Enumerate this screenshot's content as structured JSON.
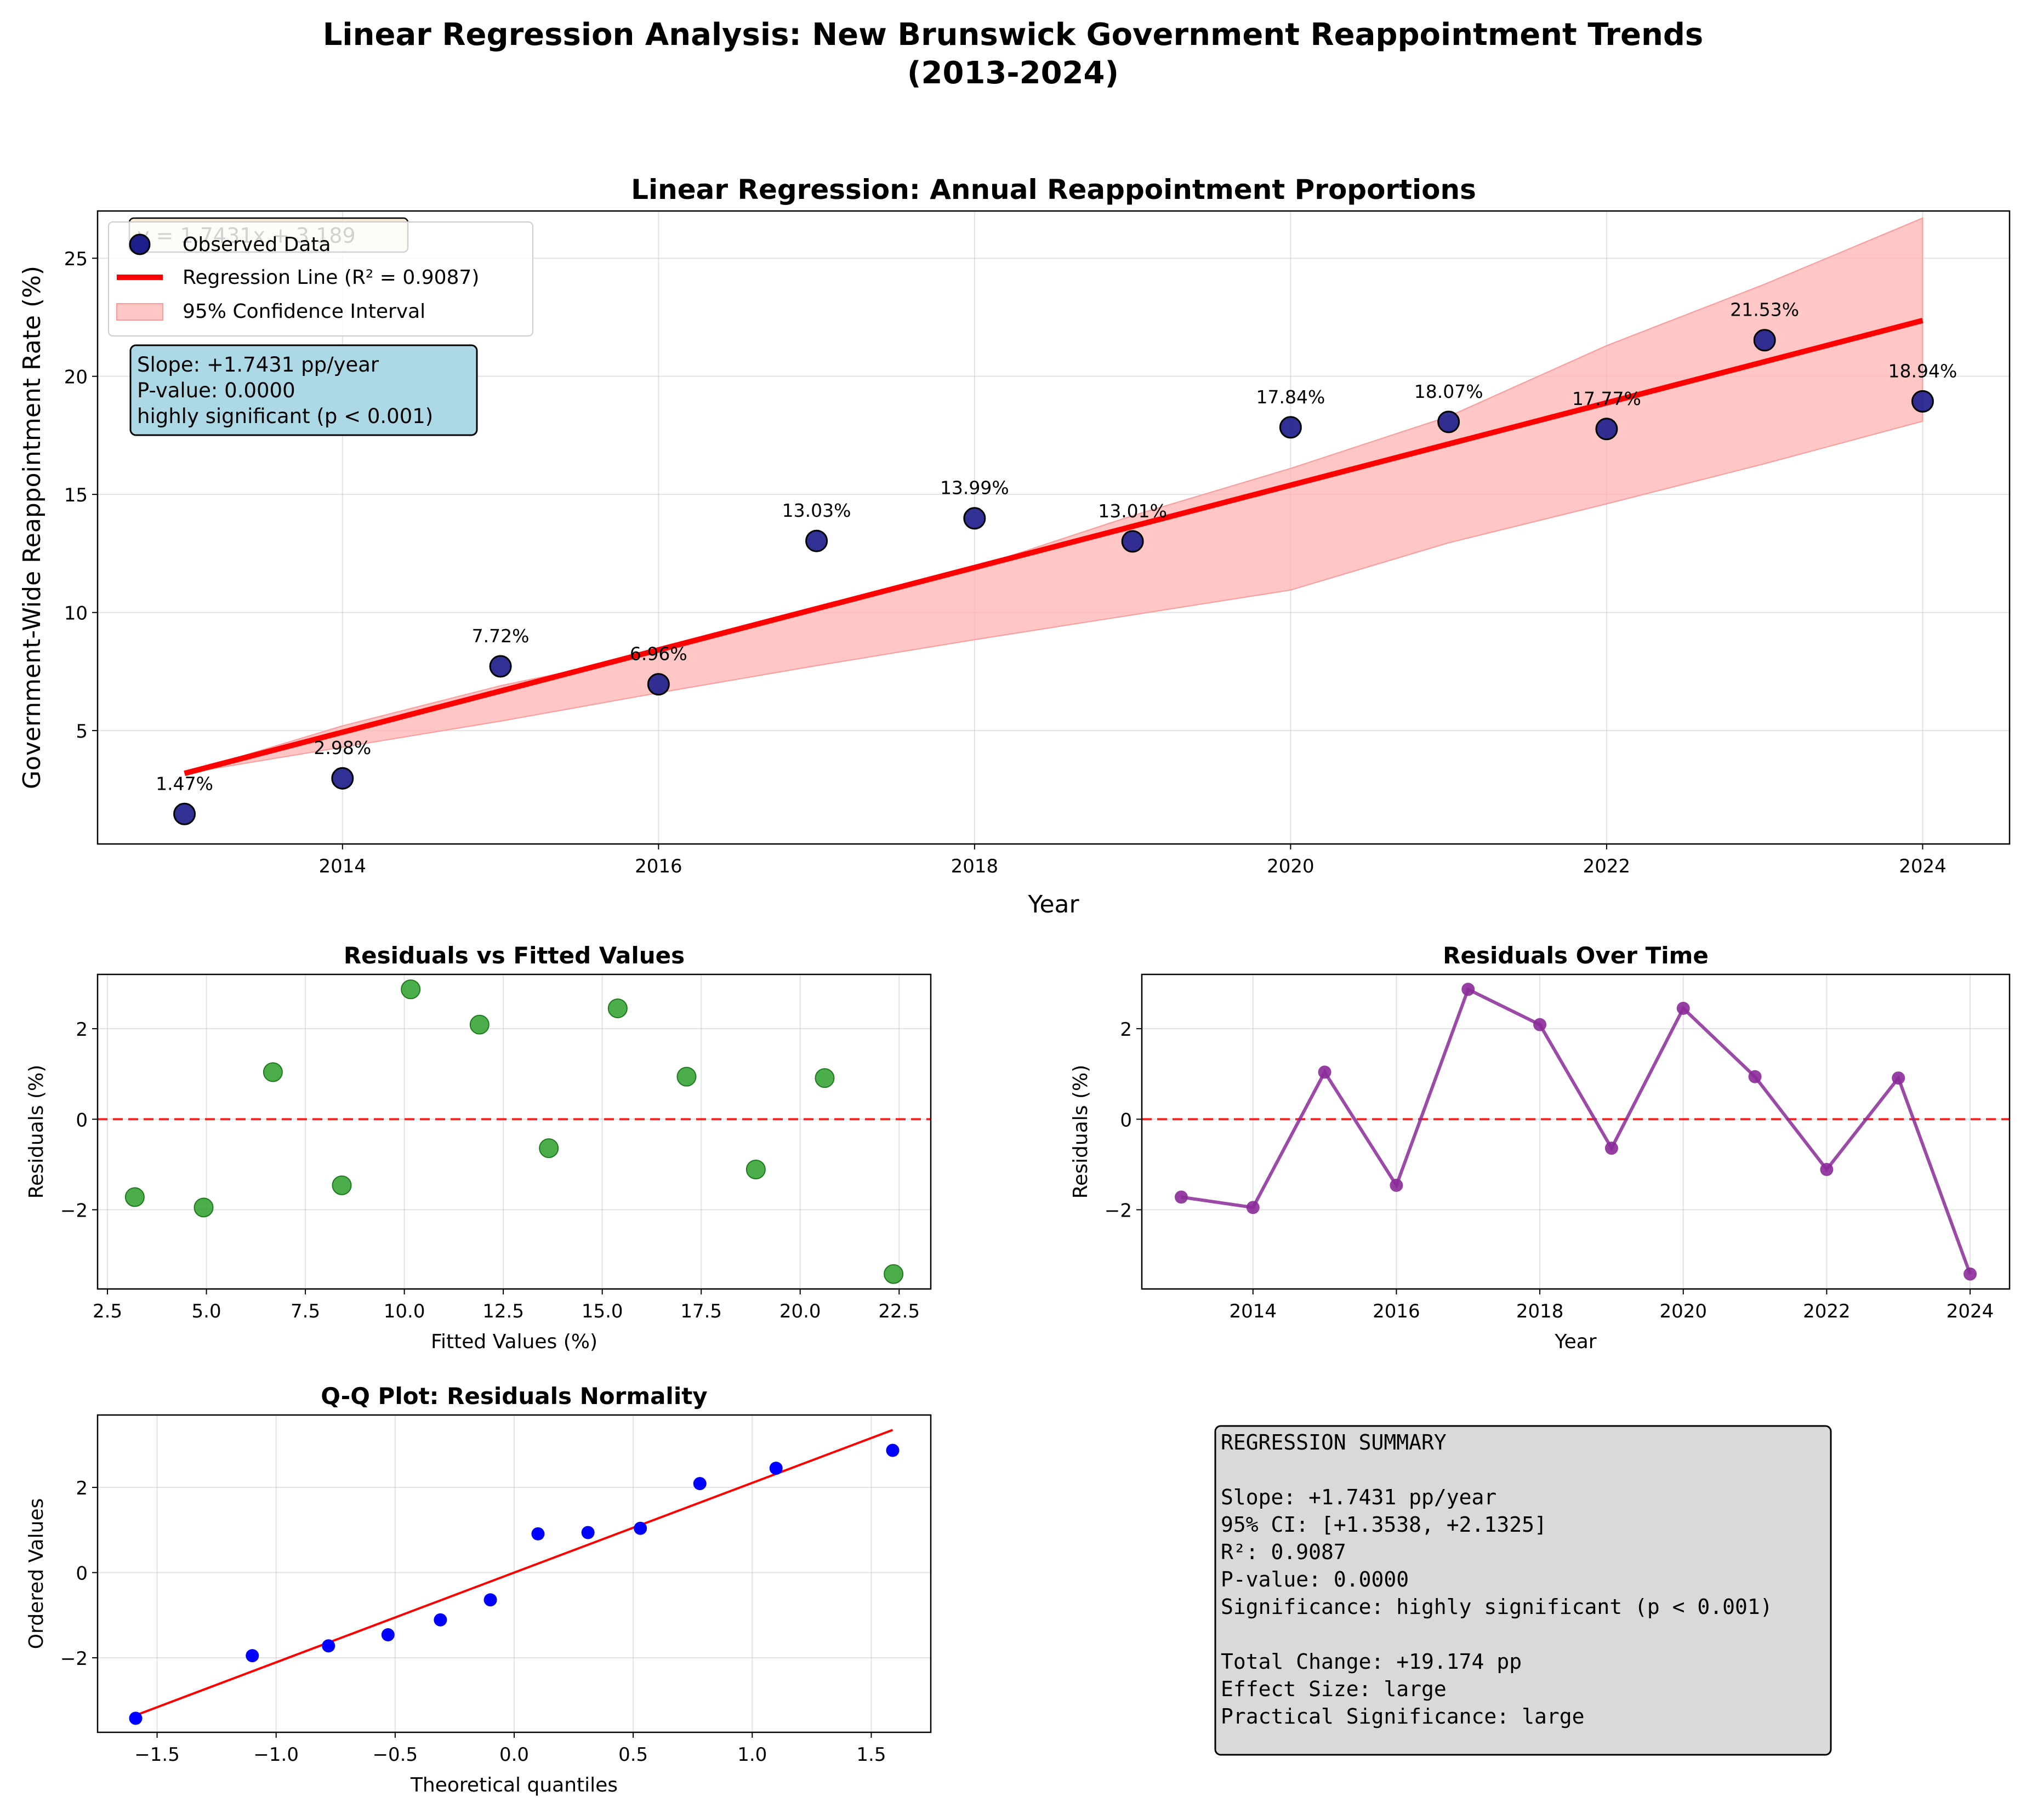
{
  "figure": {
    "title_line1": "Linear Regression Analysis: New Brunswick Government Reappointment Trends",
    "title_line2": "(2013-2024)"
  },
  "colors": {
    "observed": "#1f1f8c",
    "regression": "#ff0000",
    "ci": "#ffb3b3",
    "resid_fitted": "#2ca02c",
    "resid_time": "#8b2a99",
    "qq_points": "#0000ff",
    "stats_box": "#add8e6",
    "summary_box": "#d9d9d9"
  },
  "chart_data": [
    {
      "id": "main",
      "type": "scatter",
      "title": "Linear Regression: Annual Reappointment Proportions",
      "xlabel": "Year",
      "ylabel": "Government-Wide Reappointment Rate (%)",
      "xlim": [
        2012.45,
        2024.55
      ],
      "ylim": [
        0.2,
        27.0
      ],
      "xticks": [
        2014,
        2016,
        2018,
        2020,
        2022,
        2024
      ],
      "yticks": [
        5,
        10,
        15,
        20,
        25
      ],
      "grid": true,
      "legend_position": "top-left",
      "legend": [
        "Observed Data",
        "Regression Line (R² = 0.9087)",
        "95% Confidence Interval"
      ],
      "equation_label": "y = 1.7431x + 3.189",
      "stats_box": [
        "Slope: +1.7431 pp/year",
        "P-value: 0.0000",
        "highly significant (p < 0.001)"
      ],
      "x": [
        2013,
        2014,
        2015,
        2016,
        2017,
        2018,
        2019,
        2020,
        2021,
        2022,
        2023,
        2024
      ],
      "y": [
        1.47,
        2.98,
        7.72,
        6.96,
        13.03,
        13.99,
        13.01,
        17.84,
        18.07,
        17.77,
        21.53,
        18.94
      ],
      "point_labels": [
        "1.47%",
        "2.98%",
        "7.72%",
        "6.96%",
        "13.03%",
        "13.99%",
        "13.01%",
        "17.84%",
        "18.07%",
        "17.77%",
        "21.53%",
        "18.94%"
      ],
      "regression": {
        "x": [
          2013,
          2024
        ],
        "y": [
          3.189,
          22.363
        ]
      },
      "ci_lower": [
        3.189,
        4.3,
        5.4,
        6.6,
        7.75,
        8.85,
        9.9,
        10.95,
        12.95,
        14.6,
        16.3,
        18.1
      ],
      "ci_upper": [
        3.189,
        5.2,
        6.9,
        8.3,
        10.1,
        11.9,
        14.1,
        16.1,
        18.3,
        21.3,
        23.9,
        26.7
      ]
    },
    {
      "id": "resid_fitted",
      "type": "scatter",
      "title": "Residuals vs Fitted Values",
      "xlabel": "Fitted Values (%)",
      "ylabel": "Residuals (%)",
      "xlim": [
        2.25,
        23.3
      ],
      "ylim": [
        -3.75,
        3.2
      ],
      "xticks": [
        2.5,
        5.0,
        7.5,
        10.0,
        12.5,
        15.0,
        17.5,
        20.0,
        22.5
      ],
      "xtick_labels": [
        "2.5",
        "5.0",
        "7.5",
        "10.0",
        "12.5",
        "15.0",
        "17.5",
        "20.0",
        "22.5"
      ],
      "yticks": [
        -2,
        0,
        2
      ],
      "grid": true,
      "x": [
        3.19,
        4.93,
        6.68,
        8.42,
        10.16,
        11.9,
        13.65,
        15.39,
        17.13,
        18.88,
        20.62,
        22.36
      ],
      "y": [
        -1.72,
        -1.95,
        1.04,
        -1.46,
        2.87,
        2.09,
        -0.64,
        2.45,
        0.94,
        -1.11,
        0.91,
        -3.42
      ]
    },
    {
      "id": "resid_time",
      "type": "line",
      "title": "Residuals Over Time",
      "xlabel": "Year",
      "ylabel": "Residuals (%)",
      "xlim": [
        2012.45,
        2024.55
      ],
      "ylim": [
        -3.75,
        3.2
      ],
      "xticks": [
        2014,
        2016,
        2018,
        2020,
        2022,
        2024
      ],
      "yticks": [
        -2,
        0,
        2
      ],
      "grid": true,
      "x": [
        2013,
        2014,
        2015,
        2016,
        2017,
        2018,
        2019,
        2020,
        2021,
        2022,
        2023,
        2024
      ],
      "y": [
        -1.72,
        -1.95,
        1.04,
        -1.46,
        2.87,
        2.09,
        -0.64,
        2.45,
        0.94,
        -1.11,
        0.91,
        -3.42
      ]
    },
    {
      "id": "qq",
      "type": "scatter",
      "title": "Q-Q Plot: Residuals Normality",
      "xlabel": "Theoretical quantiles",
      "ylabel": "Ordered Values",
      "xlim": [
        -1.75,
        1.75
      ],
      "ylim": [
        -3.75,
        3.7
      ],
      "xticks": [
        -1.5,
        -1.0,
        -0.5,
        0.0,
        0.5,
        1.0,
        1.5
      ],
      "xtick_labels": [
        "−1.5",
        "−1.0",
        "−0.5",
        "0.0",
        "0.5",
        "1.0",
        "1.5"
      ],
      "yticks": [
        -2,
        0,
        2
      ],
      "grid": true,
      "x": [
        -1.59,
        -1.1,
        -0.78,
        -0.53,
        -0.31,
        -0.1,
        0.1,
        0.31,
        0.53,
        0.78,
        1.1,
        1.59
      ],
      "y": [
        -3.42,
        -1.95,
        -1.72,
        -1.46,
        -1.11,
        -0.64,
        0.91,
        0.94,
        1.04,
        2.09,
        2.45,
        2.87
      ],
      "fit_line": {
        "x": [
          -1.59,
          1.59
        ],
        "y": [
          -3.35,
          3.35
        ]
      }
    }
  ],
  "summary": {
    "lines": [
      "REGRESSION SUMMARY",
      "",
      "Slope: +1.7431 pp/year",
      "95% CI: [+1.3538, +2.1325]",
      "R²: 0.9087",
      "P-value: 0.0000",
      "Significance: highly significant (p < 0.001)",
      "",
      "Total Change: +19.174 pp",
      "Effect Size: large",
      "Practical Significance: large"
    ]
  }
}
